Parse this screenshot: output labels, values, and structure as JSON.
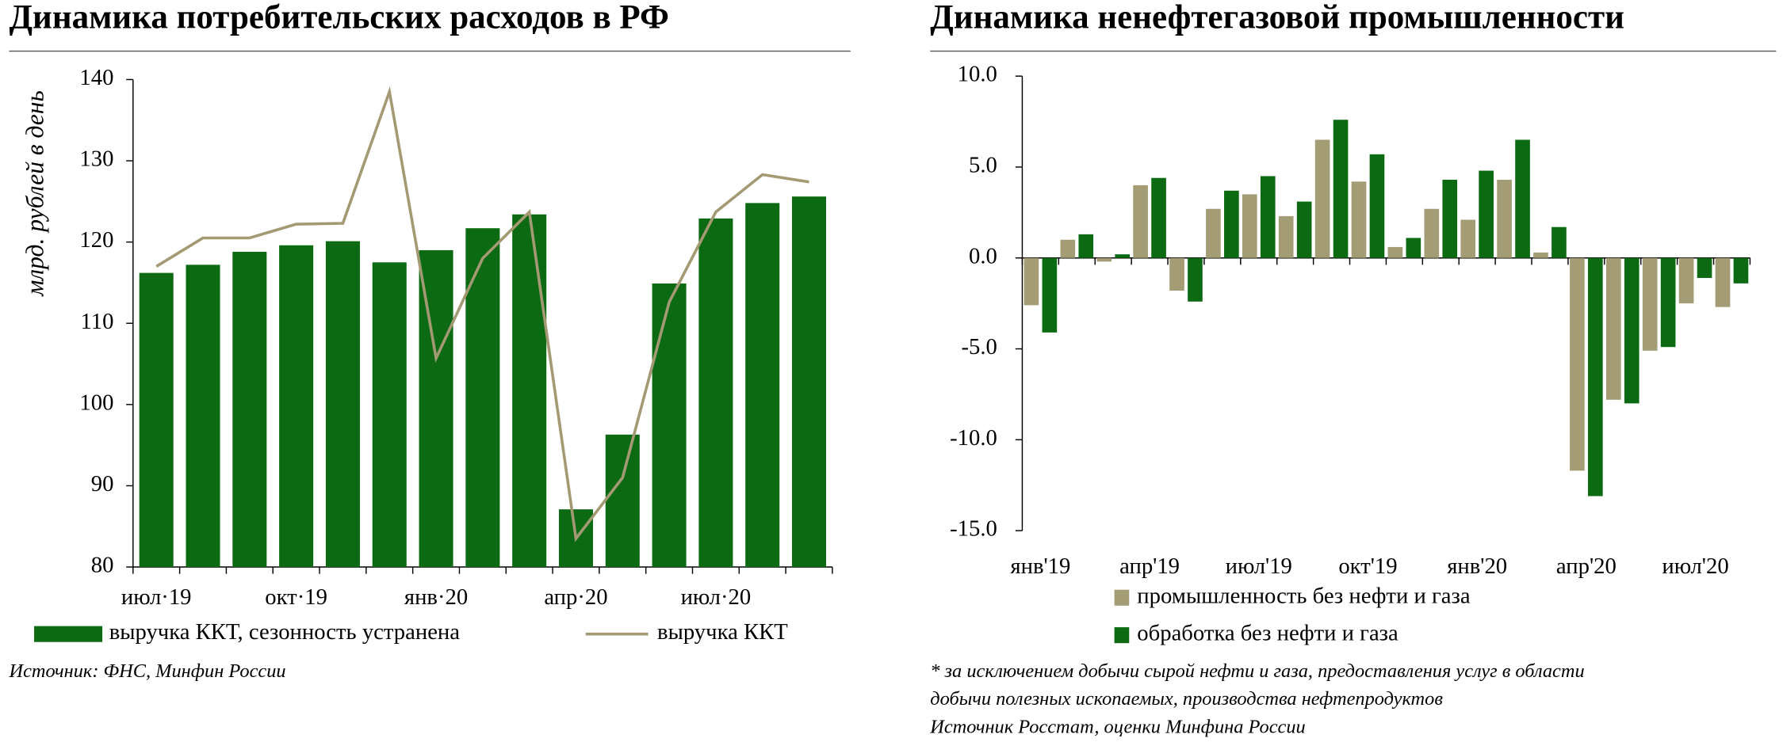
{
  "chart_data": [
    {
      "type": "bar",
      "title": "Динамика потребительских расходов в РФ",
      "y_label": "млрд. рублей в день",
      "categories": [
        "июл·19",
        null,
        null,
        "окт·19",
        null,
        null,
        "янв·20",
        null,
        null,
        "апр·20",
        null,
        null,
        "июл·20",
        null,
        null
      ],
      "series": [
        {
          "name": "выручка ККТ, сезонность устранена",
          "type": "bar",
          "color": "#0b6a12",
          "values": [
            116.2,
            117.2,
            118.8,
            119.6,
            120.1,
            117.5,
            119.0,
            121.7,
            123.4,
            87.1,
            96.3,
            114.9,
            122.9,
            124.8,
            125.6
          ]
        },
        {
          "name": "выручка ККТ",
          "type": "line",
          "color": "#a39a74",
          "values": [
            117,
            120.5,
            120.5,
            122.2,
            122.3,
            138.5,
            105.7,
            118,
            123.7,
            83.5,
            91,
            112.6,
            123.7,
            128.3,
            127.4
          ]
        }
      ],
      "ylim": [
        80,
        140
      ],
      "yticks": [
        80,
        90,
        100,
        110,
        120,
        130,
        140
      ],
      "notes": [
        "Источник: ФНС, Минфин России"
      ]
    },
    {
      "type": "bar",
      "title": "Динамика ненефтегазовой промышленности",
      "categories": [
        "янв'19",
        null,
        null,
        "апр'19",
        null,
        null,
        "июл'19",
        null,
        null,
        "окт'19",
        null,
        null,
        "янв'20",
        null,
        null,
        "апр'20",
        null,
        null,
        "июл'20",
        null
      ],
      "series": [
        {
          "name": "промышленность без нефти и газа",
          "type": "bar",
          "color": "#a39c74",
          "values": [
            -2.6,
            1.0,
            -0.2,
            4.0,
            -1.8,
            2.7,
            3.5,
            2.3,
            6.5,
            4.2,
            0.6,
            2.7,
            2.1,
            4.3,
            0.3,
            -11.7,
            -7.8,
            -5.1,
            -2.5,
            -2.7
          ]
        },
        {
          "name": "обработка без нефти и газа",
          "type": "bar",
          "color": "#0b6a12",
          "values": [
            -4.1,
            1.3,
            0.2,
            4.4,
            -2.4,
            3.7,
            4.5,
            3.1,
            7.6,
            5.7,
            1.1,
            4.3,
            4.8,
            6.5,
            1.7,
            -13.1,
            -8.0,
            -4.9,
            -1.1,
            -1.4
          ]
        }
      ],
      "ylim": [
        -15,
        10
      ],
      "yticks": [
        {
          "value": -15,
          "label": "-15.0"
        },
        {
          "value": -10,
          "label": "-10.0"
        },
        {
          "value": -5,
          "label": "-5.0"
        },
        {
          "value": 0,
          "label": "0.0"
        },
        {
          "value": 5,
          "label": "5.0"
        },
        {
          "value": 10,
          "label": "10.0"
        }
      ],
      "notes": [
        "* за исключением добычи сырой нефти и газа, предоставления услуг в области",
        "добычи полезных ископаемых, производства нефтепродуктов",
        "Источник Росстат, оценки Минфина России"
      ]
    }
  ]
}
